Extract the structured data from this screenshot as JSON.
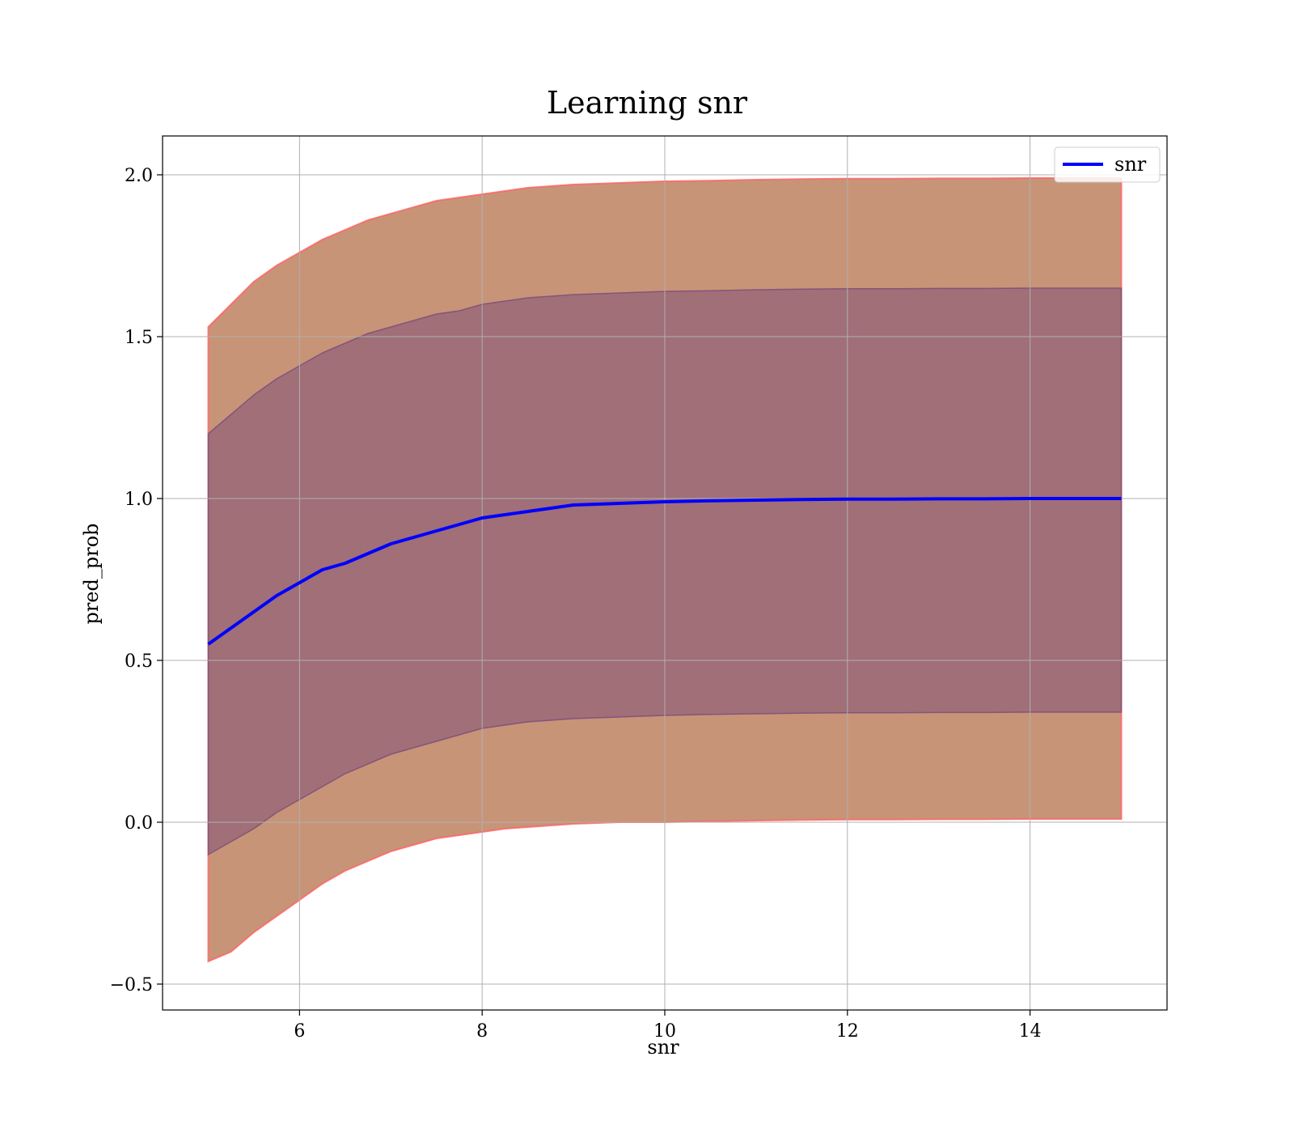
{
  "chart_data": {
    "type": "line",
    "title": "Learning snr",
    "xlabel": "snr",
    "ylabel": "pred_prob",
    "xlim": [
      4.5,
      15.5
    ],
    "ylim": [
      -0.58,
      2.12
    ],
    "xticks": [
      6,
      8,
      10,
      12,
      14
    ],
    "xtick_labels": [
      "6",
      "8",
      "10",
      "12",
      "14"
    ],
    "yticks": [
      -0.5,
      0.0,
      0.5,
      1.0,
      1.5,
      2.0
    ],
    "ytick_labels": [
      "−0.5",
      "0.0",
      "0.5",
      "1.0",
      "1.5",
      "2.0"
    ],
    "grid": true,
    "legend": {
      "position": "top-right",
      "entries": [
        "snr"
      ]
    },
    "colors": {
      "line": "#0000ff",
      "band_outer": "#c89478",
      "band_outer_edge": "#ff6060",
      "band_inner": "#a06f78",
      "band_inner_edge": "#7a4a78",
      "grid": "#b0b0b0"
    },
    "x": [
      5.0,
      5.25,
      5.5,
      5.75,
      6.0,
      6.25,
      6.5,
      6.75,
      7.0,
      7.25,
      7.5,
      7.75,
      8.0,
      8.25,
      8.5,
      8.75,
      9.0,
      9.5,
      10.0,
      10.5,
      11.0,
      11.5,
      12.0,
      12.5,
      13.0,
      13.5,
      14.0,
      14.5,
      15.0
    ],
    "series": [
      {
        "name": "snr",
        "values": [
          0.55,
          0.6,
          0.65,
          0.7,
          0.74,
          0.78,
          0.8,
          0.83,
          0.86,
          0.88,
          0.9,
          0.92,
          0.94,
          0.95,
          0.96,
          0.97,
          0.98,
          0.985,
          0.99,
          0.993,
          0.995,
          0.997,
          0.998,
          0.998,
          0.999,
          0.999,
          1.0,
          1.0,
          1.0
        ]
      }
    ],
    "bands": [
      {
        "kind": "outer",
        "upper": [
          1.53,
          1.6,
          1.67,
          1.72,
          1.76,
          1.8,
          1.83,
          1.86,
          1.88,
          1.9,
          1.92,
          1.93,
          1.94,
          1.95,
          1.96,
          1.965,
          1.97,
          1.975,
          1.98,
          1.982,
          1.985,
          1.987,
          1.988,
          1.988,
          1.989,
          1.989,
          1.99,
          1.99,
          1.99
        ],
        "lower": [
          -0.43,
          -0.4,
          -0.34,
          -0.29,
          -0.24,
          -0.19,
          -0.15,
          -0.12,
          -0.09,
          -0.07,
          -0.05,
          -0.04,
          -0.03,
          -0.02,
          -0.015,
          -0.01,
          -0.005,
          0.0,
          0.0,
          0.003,
          0.005,
          0.007,
          0.008,
          0.008,
          0.009,
          0.009,
          0.01,
          0.01,
          0.01
        ]
      },
      {
        "kind": "inner",
        "upper": [
          1.2,
          1.26,
          1.32,
          1.37,
          1.41,
          1.45,
          1.48,
          1.51,
          1.53,
          1.55,
          1.57,
          1.58,
          1.6,
          1.61,
          1.62,
          1.625,
          1.63,
          1.635,
          1.64,
          1.642,
          1.645,
          1.647,
          1.648,
          1.648,
          1.649,
          1.649,
          1.65,
          1.65,
          1.65
        ],
        "lower": [
          -0.1,
          -0.06,
          -0.02,
          0.03,
          0.07,
          0.11,
          0.15,
          0.18,
          0.21,
          0.23,
          0.25,
          0.27,
          0.29,
          0.3,
          0.31,
          0.315,
          0.32,
          0.325,
          0.33,
          0.333,
          0.335,
          0.337,
          0.338,
          0.338,
          0.339,
          0.339,
          0.34,
          0.34,
          0.34
        ]
      }
    ]
  }
}
